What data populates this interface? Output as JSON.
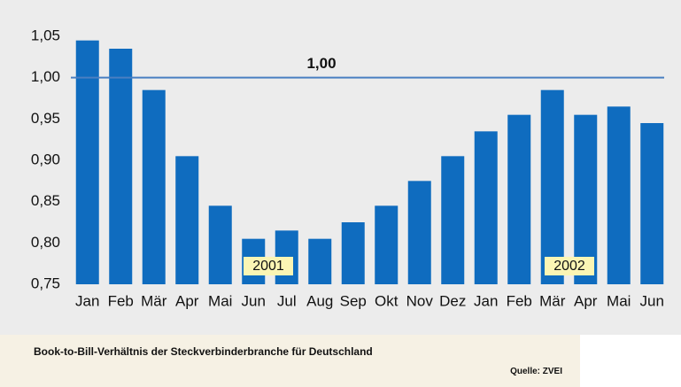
{
  "chart_data": {
    "type": "bar",
    "categories": [
      "Jan",
      "Feb",
      "Mär",
      "Apr",
      "Mai",
      "Jun",
      "Jul",
      "Aug",
      "Sep",
      "Okt",
      "Nov",
      "Dez",
      "Jan",
      "Feb",
      "Mär",
      "Apr",
      "Mai",
      "Jun"
    ],
    "values": [
      1.045,
      1.035,
      0.985,
      0.905,
      0.845,
      0.805,
      0.815,
      0.805,
      0.825,
      0.845,
      0.875,
      0.905,
      0.935,
      0.955,
      0.985,
      0.955,
      0.965,
      0.945
    ],
    "color": "#0f6cbf",
    "ylim": [
      0.75,
      1.05
    ],
    "yticks": [
      {
        "value": 0.75,
        "label": "0,75"
      },
      {
        "value": 0.8,
        "label": "0,80"
      },
      {
        "value": 0.85,
        "label": "0,85"
      },
      {
        "value": 0.9,
        "label": "0,90"
      },
      {
        "value": 0.95,
        "label": "0,95"
      },
      {
        "value": 1.0,
        "label": "1,00"
      },
      {
        "value": 1.05,
        "label": "1,05"
      }
    ],
    "reference_line": {
      "value": 1.0,
      "label": "1,00",
      "color": "#4a7fc1"
    },
    "annotations": [
      "2001",
      "2002"
    ]
  },
  "caption": {
    "title": "Book-to-Bill-Verhältnis der Steckverbinderbranche für Deutschland",
    "source": "Quelle: ZVEI"
  }
}
